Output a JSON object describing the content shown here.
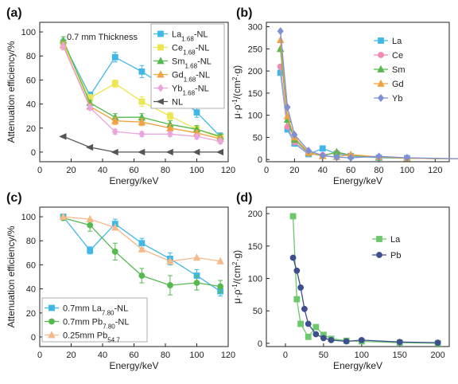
{
  "chart_data": [
    {
      "id": "a",
      "type": "line",
      "panel_label": "(a)",
      "annotation": "0.7 mm Thickness",
      "xlabel": "Energy/keV",
      "ylabel": "Attenuation efficiency/%",
      "xlim": [
        0,
        120
      ],
      "ylim": [
        -8,
        108
      ],
      "xticks": [
        0,
        20,
        40,
        60,
        80,
        100,
        120
      ],
      "yticks": [
        0,
        20,
        40,
        60,
        80,
        100
      ],
      "legend_position": "top-right",
      "series": [
        {
          "name": "La",
          "sub": "1.68",
          "suffix": "-NL",
          "color": "#3fb8e8",
          "marker": "square",
          "x": [
            15,
            32,
            48,
            65,
            83,
            100,
            115
          ],
          "y": [
            91,
            47,
            79,
            67,
            52,
            33,
            13
          ],
          "err": [
            3,
            3,
            4,
            5,
            5,
            4,
            3
          ]
        },
        {
          "name": "Ce",
          "sub": "1.68",
          "suffix": "-NL",
          "color": "#ece652",
          "marker": "square",
          "x": [
            15,
            32,
            48,
            65,
            83,
            100,
            115
          ],
          "y": [
            90,
            45,
            57,
            42,
            30,
            19,
            12
          ],
          "err": [
            3,
            3,
            3,
            4,
            3,
            3,
            2
          ]
        },
        {
          "name": "Sm",
          "sub": "1.68",
          "suffix": "-NL",
          "color": "#56b94f",
          "marker": "triangle",
          "x": [
            15,
            32,
            48,
            65,
            83,
            100,
            115
          ],
          "y": [
            93,
            41,
            29,
            29,
            23,
            19,
            13
          ],
          "err": [
            3,
            2,
            3,
            3,
            3,
            3,
            2
          ]
        },
        {
          "name": "Gd",
          "sub": "1.68",
          "suffix": "-NL",
          "color": "#f0a341",
          "marker": "triangle",
          "x": [
            15,
            32,
            48,
            65,
            83,
            100,
            115
          ],
          "y": [
            89,
            38,
            26,
            25,
            20,
            16,
            11
          ],
          "err": [
            3,
            2,
            3,
            3,
            3,
            2,
            2
          ]
        },
        {
          "name": "Yb",
          "sub": "1.68",
          "suffix": "-NL",
          "color": "#e9a6dc",
          "marker": "diamond",
          "x": [
            15,
            32,
            48,
            65,
            83,
            100,
            115
          ],
          "y": [
            88,
            37,
            17,
            15,
            15,
            13,
            9
          ],
          "err": [
            3,
            2,
            2,
            2,
            2,
            2,
            2
          ]
        },
        {
          "name": "NL",
          "sub": "",
          "suffix": "",
          "color": "#555555",
          "marker": "leftTriangle",
          "x": [
            15,
            32,
            48,
            65,
            83,
            100,
            115
          ],
          "y": [
            13,
            4,
            0,
            0,
            0,
            0,
            0
          ],
          "err": [
            0,
            0,
            0,
            0,
            0,
            0,
            0
          ]
        }
      ]
    },
    {
      "id": "b",
      "type": "line",
      "panel_label": "(b)",
      "xlabel": "Energy/keV",
      "ylabel_parts": [
        "μ·ρ",
        "-1",
        "/(cm",
        "2",
        "·g)"
      ],
      "xlim": [
        0,
        130
      ],
      "ylim": [
        -5,
        310
      ],
      "xticks": [
        0,
        20,
        40,
        60,
        80,
        100,
        120
      ],
      "yticks": [
        0,
        50,
        100,
        150,
        200,
        250,
        300
      ],
      "legend_position": "top-center",
      "series": [
        {
          "name": "La",
          "color": "#3fb8e8",
          "marker": "square",
          "x": [
            10,
            15,
            20,
            30,
            40,
            50,
            60,
            80,
            100,
            150
          ],
          "y": [
            196,
            68,
            36,
            12,
            25,
            13,
            8,
            4,
            3,
            1
          ]
        },
        {
          "name": "Ce",
          "color": "#f08ab2",
          "marker": "circle",
          "x": [
            10,
            15,
            20,
            30,
            40,
            50,
            60,
            80,
            100,
            150
          ],
          "y": [
            210,
            74,
            39,
            13,
            10,
            15,
            9,
            5,
            3,
            1
          ]
        },
        {
          "name": "Sm",
          "color": "#56b94f",
          "marker": "triangle",
          "x": [
            10,
            15,
            20,
            30,
            40,
            50,
            60,
            80,
            100,
            150
          ],
          "y": [
            250,
            90,
            45,
            15,
            8,
            17,
            10,
            5,
            3,
            1
          ]
        },
        {
          "name": "Gd",
          "color": "#f0a341",
          "marker": "triangle",
          "x": [
            10,
            15,
            20,
            30,
            40,
            50,
            60,
            80,
            100,
            150
          ],
          "y": [
            270,
            98,
            50,
            16,
            8,
            6,
            11,
            6,
            3,
            1
          ]
        },
        {
          "name": "Yb",
          "color": "#7f8fd3",
          "marker": "diamond",
          "x": [
            10,
            15,
            20,
            30,
            40,
            50,
            60,
            80,
            100,
            150
          ],
          "y": [
            290,
            118,
            56,
            20,
            9,
            5,
            4,
            7,
            4,
            1
          ]
        }
      ]
    },
    {
      "id": "c",
      "type": "line",
      "panel_label": "(c)",
      "xlabel": "Energy/keV",
      "ylabel": "Attenuation efficiency/%",
      "xlim": [
        0,
        120
      ],
      "ylim": [
        -8,
        108
      ],
      "xticks": [
        0,
        20,
        40,
        60,
        80,
        100,
        120
      ],
      "yticks": [
        0,
        20,
        40,
        60,
        80,
        100
      ],
      "legend_position": "bottom-left",
      "series": [
        {
          "name": "0.7mm La",
          "sub": "7.80",
          "suffix": "-NL",
          "color": "#3fb8e8",
          "marker": "square",
          "x": [
            15,
            32,
            48,
            65,
            83,
            100,
            115
          ],
          "y": [
            100,
            72,
            94,
            78,
            65,
            51,
            38
          ],
          "err": [
            2,
            3,
            4,
            4,
            5,
            5,
            4
          ]
        },
        {
          "name": "0.7mm Pb",
          "sub": "7.80",
          "suffix": "-NL",
          "color": "#56b94f",
          "marker": "circle",
          "x": [
            15,
            32,
            48,
            65,
            83,
            100,
            115
          ],
          "y": [
            99,
            93,
            71,
            51,
            43,
            45,
            42
          ],
          "err": [
            2,
            5,
            7,
            6,
            8,
            6,
            5
          ]
        },
        {
          "name": "0.25mm Pb",
          "sub": "54.7",
          "suffix": "",
          "color": "#f5b98a",
          "marker": "triangle",
          "x": [
            15,
            32,
            48,
            65,
            83,
            100,
            115
          ],
          "y": [
            100,
            98,
            91,
            73,
            63,
            66,
            63
          ],
          "err": [
            0,
            0,
            0,
            0,
            0,
            0,
            0
          ]
        }
      ]
    },
    {
      "id": "d",
      "type": "line",
      "panel_label": "(d)",
      "xlabel": "Energy/keV",
      "ylabel_parts": [
        "μ·ρ",
        "-1",
        "/(cm",
        "2",
        "·g)"
      ],
      "xlim": [
        -25,
        215
      ],
      "ylim": [
        -5,
        210
      ],
      "xticks": [
        0,
        50,
        100,
        150,
        200
      ],
      "yticks": [
        0,
        50,
        100,
        150,
        200
      ],
      "legend_position": "top-right",
      "series": [
        {
          "name": "La",
          "color": "#6cc86a",
          "marker": "square",
          "x": [
            10,
            15,
            20,
            30,
            40,
            50,
            60,
            80,
            100,
            150,
            200
          ],
          "y": [
            196,
            68,
            30,
            10,
            25,
            13,
            7,
            4,
            3,
            1,
            0
          ]
        },
        {
          "name": "Pb",
          "color": "#3e4f8f",
          "marker": "circle",
          "x": [
            10,
            15,
            20,
            25,
            30,
            40,
            50,
            60,
            80,
            100,
            150,
            200
          ],
          "y": [
            132,
            112,
            86,
            53,
            30,
            14,
            8,
            5,
            3,
            5,
            2,
            1
          ]
        }
      ]
    }
  ]
}
